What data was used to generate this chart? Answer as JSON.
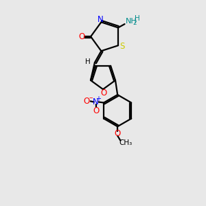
{
  "bg_color": "#e8e8e8",
  "bond_color": "#000000",
  "n_color": "#0000ff",
  "o_color": "#ff0000",
  "s_color": "#cccc00",
  "nh_color": "#008b8b",
  "lw": 1.6,
  "xlim": [
    0,
    10
  ],
  "ylim": [
    0,
    14
  ]
}
